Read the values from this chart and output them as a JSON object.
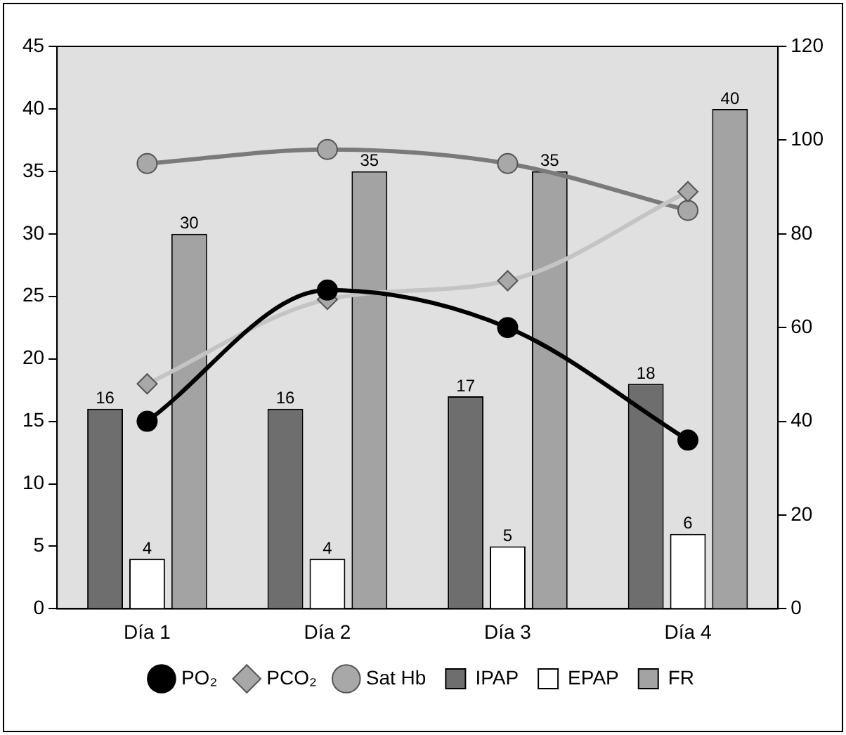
{
  "chart_data": {
    "type": "bar",
    "categories": [
      "Día 1",
      "Día 2",
      "Día 3",
      "Día 4"
    ],
    "series": [
      {
        "name": "IPAP",
        "color": "#6e6e6e",
        "values": [
          16,
          16,
          17,
          18
        ],
        "value_labels": [
          "16",
          "16",
          "17",
          "18"
        ]
      },
      {
        "name": "EPAP",
        "color": "#ffffff",
        "values": [
          4,
          4,
          5,
          6
        ],
        "value_labels": [
          "4",
          "4",
          "5",
          "6"
        ]
      },
      {
        "name": "FR",
        "color": "#a3a3a3",
        "values": [
          30,
          35,
          35,
          40
        ],
        "value_labels": [
          "30",
          "35",
          "35",
          "40"
        ]
      },
      {
        "name": "PO₂",
        "type": "line",
        "axis": "y2",
        "color": "#000000",
        "marker": "circle",
        "values": [
          40,
          68,
          60,
          36
        ]
      },
      {
        "name": "PCO₂",
        "type": "line",
        "axis": "y2",
        "color": "#c4c4c4",
        "marker": "diamond",
        "values": [
          48,
          66,
          70,
          89
        ]
      },
      {
        "name": "Sat Hb",
        "type": "line",
        "axis": "y2",
        "color": "#7a7a7a",
        "marker": "circle",
        "values": [
          95,
          98,
          95,
          85
        ]
      }
    ],
    "ylim": [
      0,
      45
    ],
    "yticks": [
      0,
      5,
      10,
      15,
      20,
      25,
      30,
      35,
      40,
      45
    ],
    "y2lim": [
      0,
      120
    ],
    "y2ticks": [
      0,
      20,
      40,
      60,
      80,
      100,
      120
    ],
    "legend": "bottom",
    "grid": false
  }
}
